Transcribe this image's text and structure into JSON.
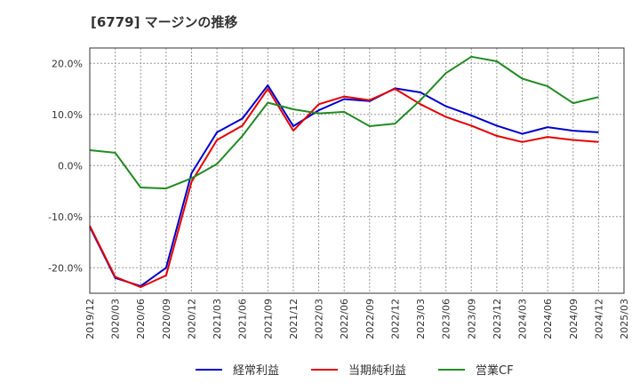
{
  "chart_data": {
    "type": "line",
    "title": "[6779]  マージンの推移",
    "xlabel": "",
    "ylabel": "",
    "ylim": [
      -25,
      23
    ],
    "yticks": [
      -20,
      -10,
      0,
      10,
      20
    ],
    "ytick_labels": [
      "-20.0%",
      "-10.0%",
      "0.0%",
      "10.0%",
      "20.0%"
    ],
    "categories": [
      "2019/12",
      "2020/03",
      "2020/06",
      "2020/09",
      "2020/12",
      "2021/03",
      "2021/06",
      "2021/09",
      "2021/12",
      "2022/03",
      "2022/06",
      "2022/09",
      "2022/12",
      "2023/03",
      "2023/06",
      "2023/09",
      "2023/12",
      "2024/03",
      "2024/06",
      "2024/09",
      "2024/12",
      "2025/03"
    ],
    "grid": true,
    "legend_position": "bottom",
    "series": [
      {
        "name": "経常利益",
        "color": "#0000cc",
        "values": [
          -12.0,
          -22.0,
          -23.6,
          -20.0,
          -1.5,
          6.5,
          9.2,
          15.7,
          7.7,
          10.8,
          13.0,
          12.6,
          15.1,
          14.3,
          11.6,
          9.8,
          7.8,
          6.2,
          7.5,
          6.8,
          6.5,
          null
        ]
      },
      {
        "name": "当期純利益",
        "color": "#e60000",
        "values": [
          -11.8,
          -21.8,
          -23.8,
          -21.5,
          -3.2,
          5.0,
          7.8,
          15.0,
          6.8,
          12.0,
          13.5,
          12.8,
          15.0,
          12.0,
          9.5,
          7.8,
          5.8,
          4.6,
          5.6,
          5.0,
          4.6,
          null
        ]
      },
      {
        "name": "営業CF",
        "color": "#228b22",
        "values": [
          3.0,
          2.5,
          -4.3,
          -4.5,
          -2.5,
          0.3,
          5.8,
          12.3,
          11.0,
          10.2,
          10.5,
          7.7,
          8.2,
          12.8,
          18.1,
          21.3,
          20.4,
          17.0,
          15.5,
          12.2,
          13.4,
          null
        ]
      }
    ]
  }
}
